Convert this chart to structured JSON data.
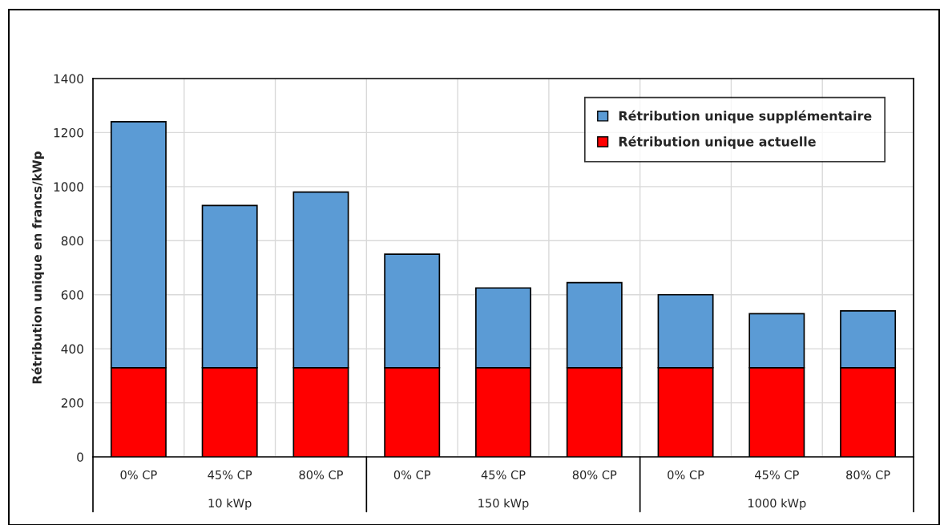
{
  "chart_data": {
    "type": "bar",
    "stacked": true,
    "ylabel": "Rétribution unique en francs/kWp",
    "categories": [
      "0% CP",
      "45% CP",
      "80% CP",
      "0% CP",
      "45% CP",
      "80% CP",
      "0% CP",
      "45% CP",
      "80% CP"
    ],
    "series": [
      {
        "name": "Rétribution unique actuelle",
        "color": "#ff0000",
        "values": [
          330,
          330,
          330,
          330,
          330,
          330,
          330,
          330,
          330
        ]
      },
      {
        "name": "Rétribution unique supplémentaire",
        "color": "#5b9bd5",
        "values": [
          910,
          600,
          650,
          420,
          295,
          315,
          270,
          200,
          210
        ]
      }
    ],
    "annotations": [
      "10 kWp",
      "150 kWp",
      "1000 kWp"
    ],
    "ylim": [
      0,
      1400
    ],
    "yticks": [
      0,
      200,
      400,
      600,
      800,
      1000,
      1200,
      1400
    ],
    "grid": true,
    "legend": "top right"
  }
}
